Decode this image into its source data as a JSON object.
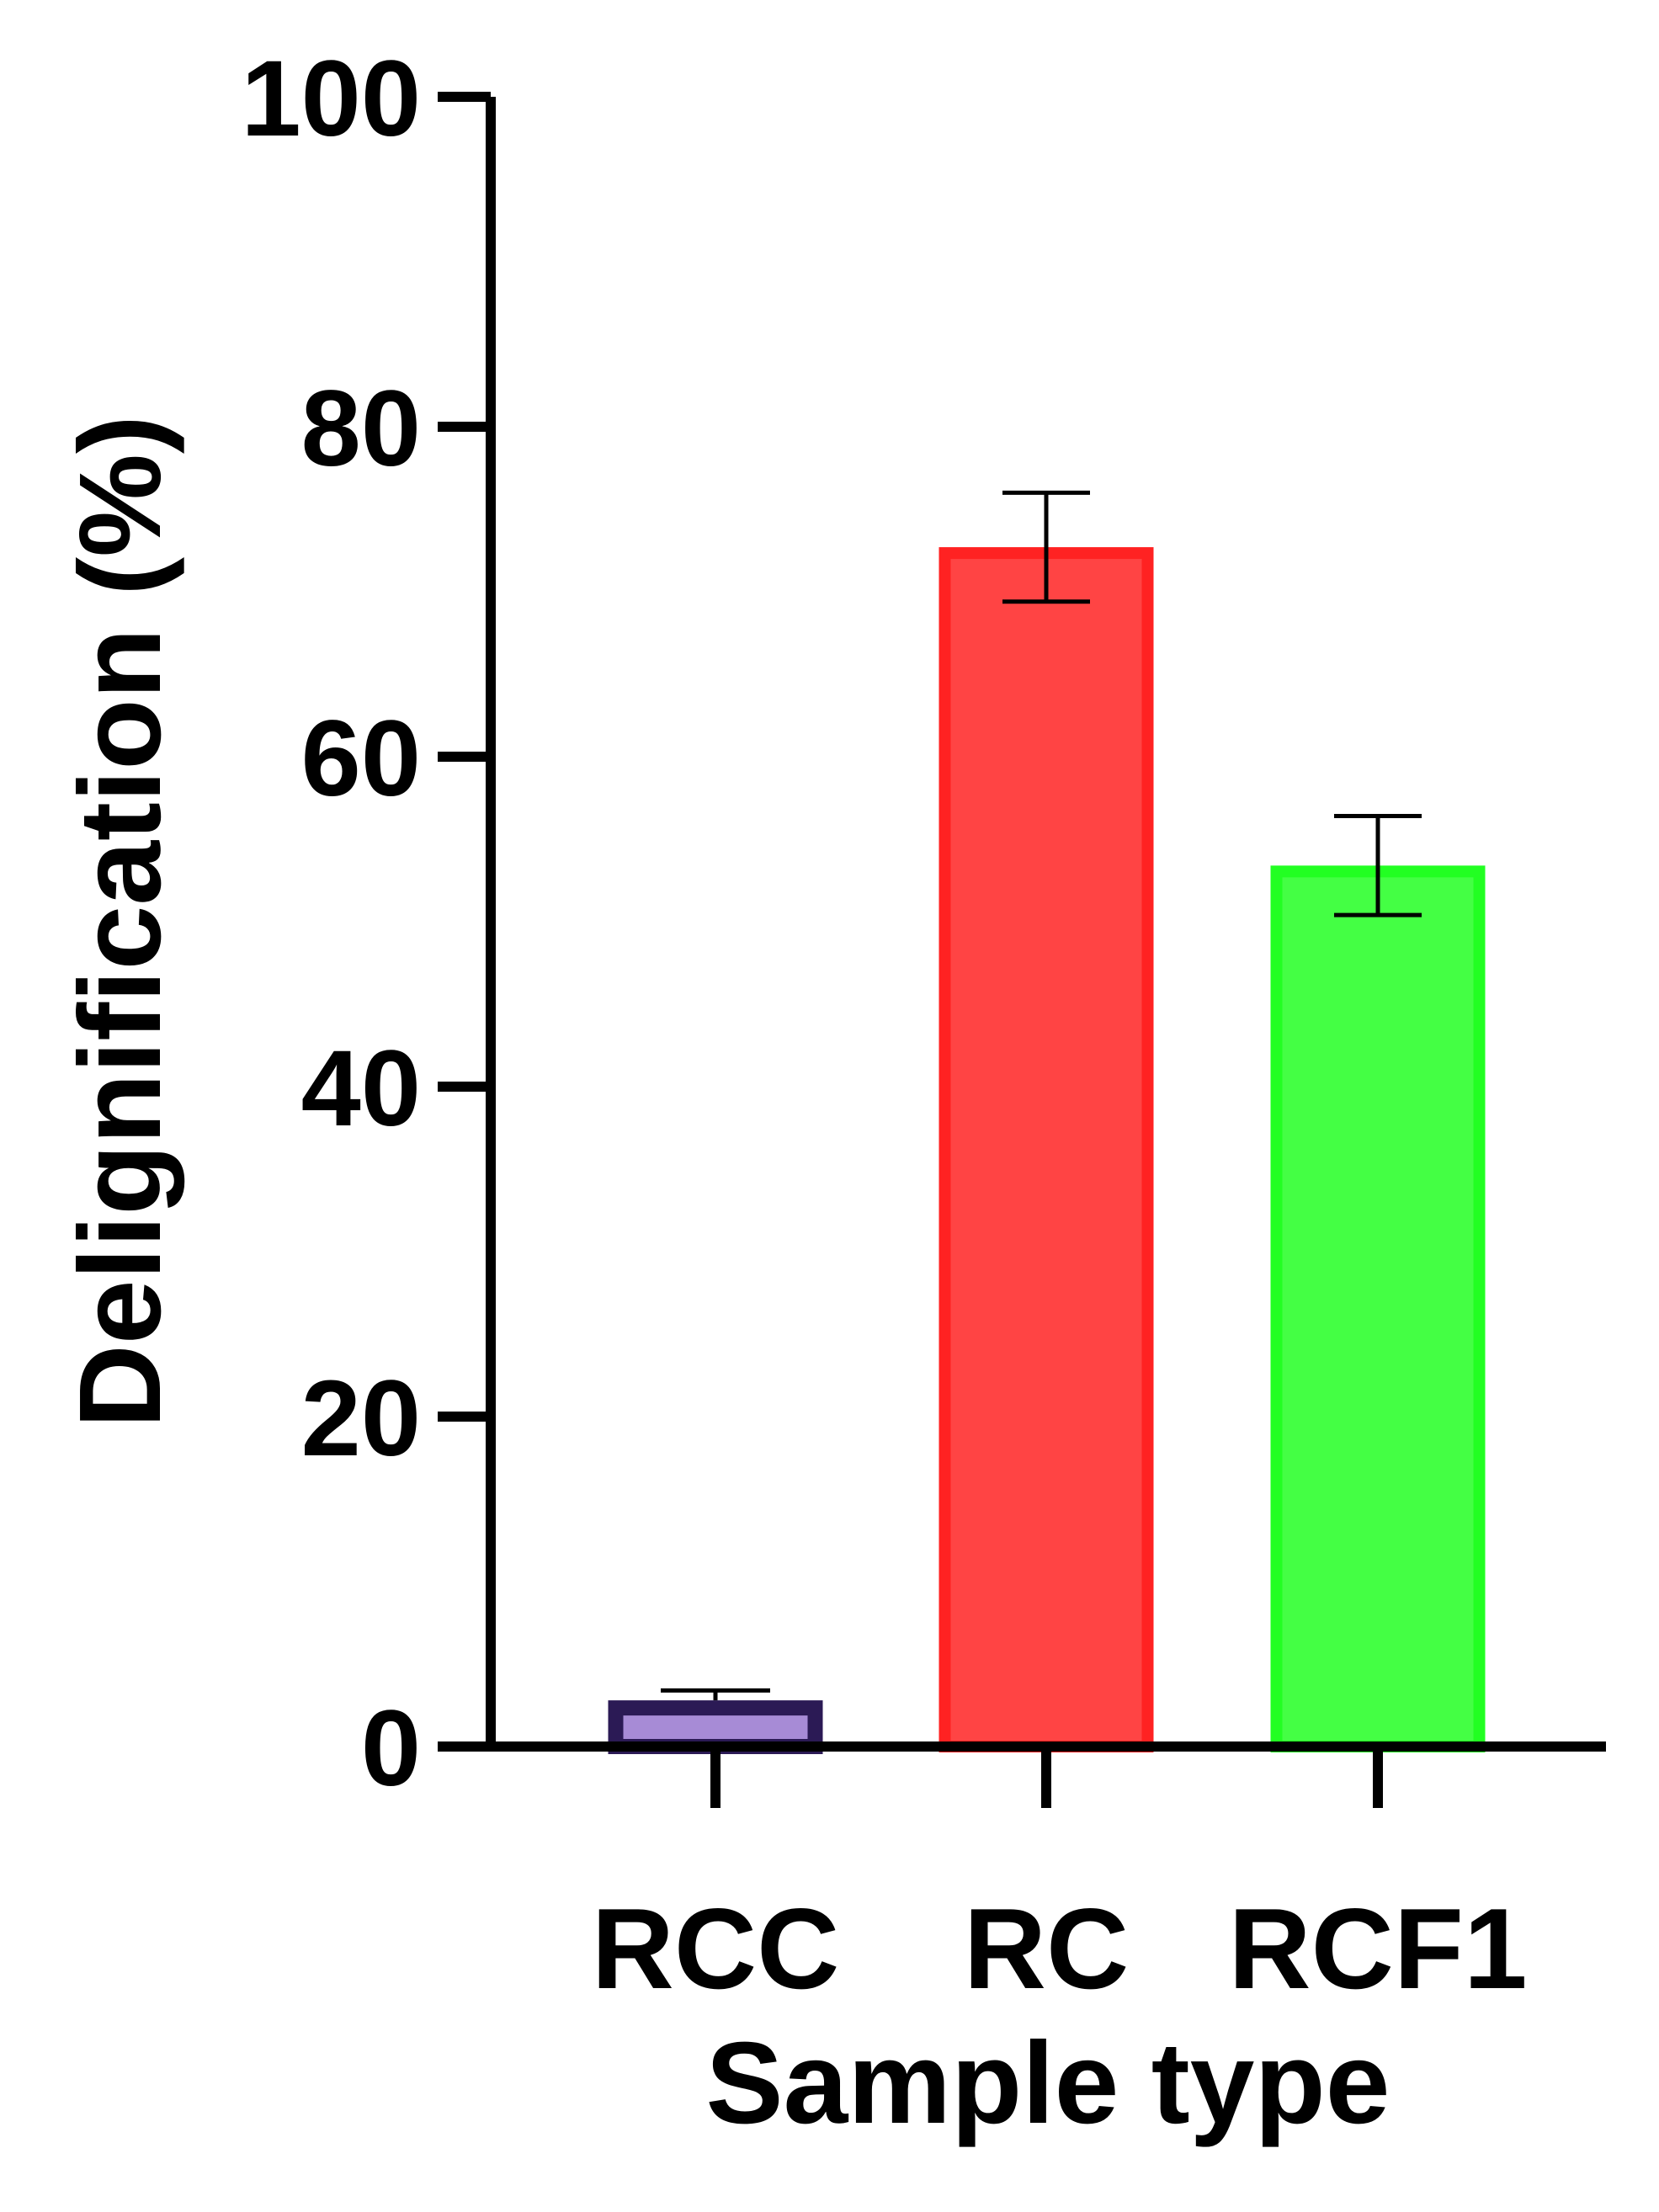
{
  "chart_data": {
    "type": "bar",
    "xlabel": "Sample type",
    "ylabel": "Delignification (%)",
    "ylim": [
      0,
      100
    ],
    "yticks": [
      0,
      20,
      40,
      60,
      80,
      100
    ],
    "yticks_labels": [
      "0",
      "20",
      "40",
      "60",
      "80",
      "100"
    ],
    "grid": false,
    "legend": "none",
    "categories": [
      "RCC",
      "RC",
      "RCF1"
    ],
    "values": [
      2.8,
      72.7,
      53.4
    ],
    "errors": [
      0.6,
      3.3,
      3.0
    ],
    "fill_colors": [
      "#a78bd6",
      "#ff4444",
      "#44ff44"
    ],
    "edge_colors": [
      "#2b1a55",
      "#ff2222",
      "#22ff22"
    ]
  }
}
